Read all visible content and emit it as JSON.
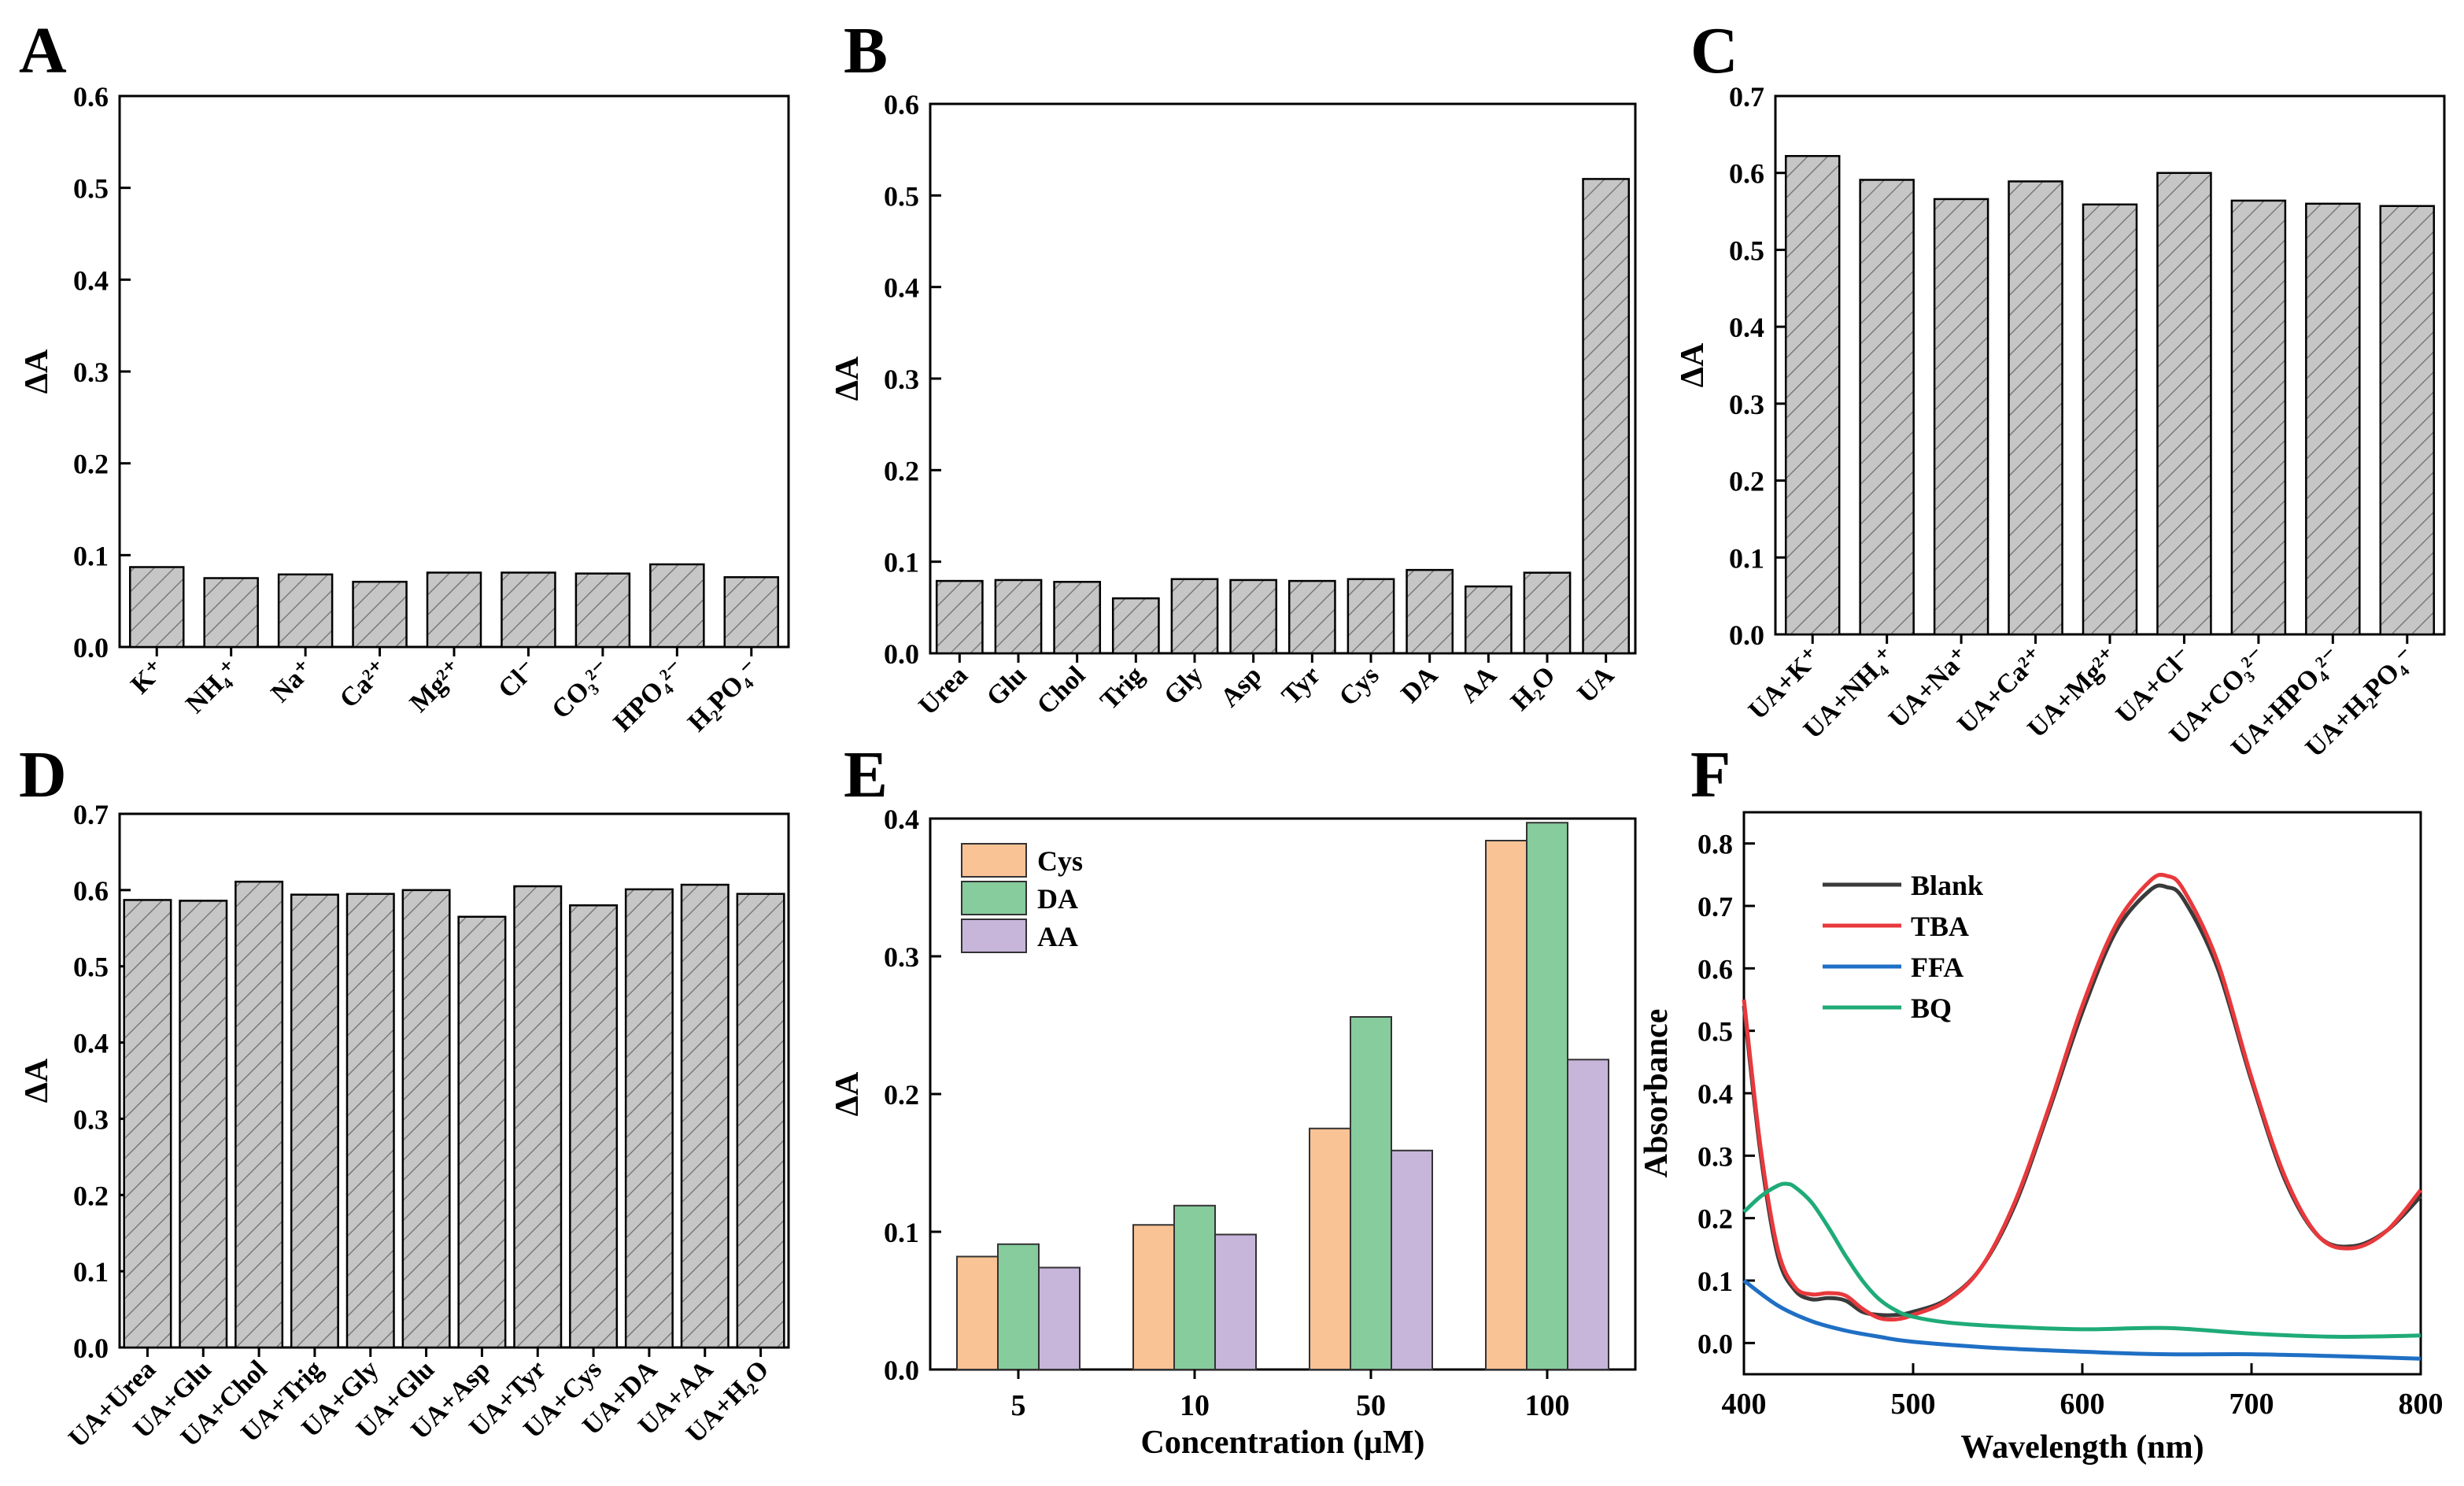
{
  "chart_data": [
    {
      "panel": "A",
      "type": "bar",
      "categories": [
        "K⁺",
        "NH₄⁺",
        "Na⁺",
        "Ca²⁺",
        "Mg²⁺",
        "Cl⁻",
        "CO₃²⁻",
        "HPO₄²⁻",
        "H₂PO₄⁻"
      ],
      "values": [
        0.087,
        0.075,
        0.079,
        0.071,
        0.081,
        0.081,
        0.08,
        0.09,
        0.076
      ],
      "ylabel": "ΔA",
      "ylim": [
        0,
        0.6
      ],
      "yticks": [
        "0.0",
        "0.1",
        "0.2",
        "0.3",
        "0.4",
        "0.5",
        "0.6"
      ],
      "bar_color": "#c6c6c6",
      "hatch": true
    },
    {
      "panel": "B",
      "type": "bar",
      "categories": [
        "Urea",
        "Glu",
        "Chol",
        "Trig",
        "Gly",
        "Asp",
        "Tyr",
        "Cys",
        "DA",
        "AA",
        "H₂O",
        "UA"
      ],
      "values": [
        0.079,
        0.08,
        0.078,
        0.06,
        0.081,
        0.08,
        0.079,
        0.081,
        0.091,
        0.073,
        0.088,
        0.518
      ],
      "ylabel": "ΔA",
      "ylim": [
        0,
        0.6
      ],
      "yticks": [
        "0.0",
        "0.1",
        "0.2",
        "0.3",
        "0.4",
        "0.5",
        "0.6"
      ],
      "bar_color": "#c6c6c6",
      "hatch": true
    },
    {
      "panel": "C",
      "type": "bar",
      "categories": [
        "UA+K⁺",
        "UA+NH₄⁺",
        "UA+Na⁺",
        "UA+Ca²⁺",
        "UA+Mg²⁺",
        "UA+Cl⁻",
        "UA+CO₃²⁻",
        "UA+HPO₄²⁻",
        "UA+H₂PO₄⁻"
      ],
      "values": [
        0.622,
        0.591,
        0.566,
        0.589,
        0.559,
        0.6,
        0.564,
        0.56,
        0.557
      ],
      "ylabel": "ΔA",
      "ylim": [
        0,
        0.7
      ],
      "yticks": [
        "0.0",
        "0.1",
        "0.2",
        "0.3",
        "0.4",
        "0.5",
        "0.6",
        "0.7"
      ],
      "bar_color": "#c6c6c6",
      "hatch": true
    },
    {
      "panel": "D",
      "type": "bar",
      "categories": [
        "UA+Urea",
        "UA+Glu",
        "UA+Chol",
        "UA+Trig",
        "UA+Gly",
        "UA+Glu",
        "UA+Asp",
        "UA+Tyr",
        "UA+Cys",
        "UA+DA",
        "UA+AA",
        "UA+H₂O"
      ],
      "values": [
        0.587,
        0.586,
        0.611,
        0.594,
        0.595,
        0.6,
        0.565,
        0.605,
        0.58,
        0.601,
        0.607,
        0.595
      ],
      "ylabel": "ΔA",
      "ylim": [
        0,
        0.7
      ],
      "yticks": [
        "0.0",
        "0.1",
        "0.2",
        "0.3",
        "0.4",
        "0.5",
        "0.6",
        "0.7"
      ],
      "bar_color": "#c6c6c6",
      "hatch": true
    },
    {
      "panel": "E",
      "type": "bar",
      "categories": [
        "5",
        "10",
        "50",
        "100"
      ],
      "series": [
        {
          "name": "Cys",
          "values": [
            0.082,
            0.105,
            0.175,
            0.384
          ],
          "color": "#f9c396"
        },
        {
          "name": "DA",
          "values": [
            0.091,
            0.119,
            0.256,
            0.397
          ],
          "color": "#86cc9c"
        },
        {
          "name": "AA",
          "values": [
            0.074,
            0.098,
            0.159,
            0.225
          ],
          "color": "#c7b5da"
        }
      ],
      "xlabel": "Concentration (μM)",
      "ylabel": "ΔA",
      "ylim": [
        0,
        0.4
      ],
      "yticks": [
        "0.0",
        "0.1",
        "0.2",
        "0.3",
        "0.4"
      ],
      "legend": "top-left"
    },
    {
      "panel": "F",
      "type": "line",
      "xlabel": "Wavelength (nm)",
      "ylabel": "Absorbance",
      "xlim": [
        400,
        800
      ],
      "ylim": [
        -0.05,
        0.85
      ],
      "xticks": [
        "400",
        "500",
        "600",
        "700",
        "800"
      ],
      "yticks": [
        "0.0",
        "0.1",
        "0.2",
        "0.3",
        "0.4",
        "0.5",
        "0.6",
        "0.7",
        "0.8"
      ],
      "legend": "top-left",
      "series": [
        {
          "name": "Blank",
          "color": "#3a3a3a",
          "x": [
            400,
            410,
            420,
            430,
            440,
            450,
            460,
            470,
            480,
            490,
            500,
            520,
            540,
            560,
            580,
            600,
            620,
            640,
            650,
            660,
            680,
            700,
            720,
            740,
            760,
            780,
            800
          ],
          "y": [
            0.54,
            0.3,
            0.14,
            0.085,
            0.07,
            0.072,
            0.068,
            0.05,
            0.045,
            0.045,
            0.05,
            0.07,
            0.12,
            0.22,
            0.37,
            0.53,
            0.66,
            0.725,
            0.73,
            0.71,
            0.6,
            0.42,
            0.26,
            0.17,
            0.155,
            0.18,
            0.235
          ]
        },
        {
          "name": "TBA",
          "color": "#e8393c",
          "x": [
            400,
            410,
            420,
            430,
            440,
            450,
            460,
            470,
            480,
            490,
            500,
            520,
            540,
            560,
            580,
            600,
            620,
            640,
            650,
            660,
            680,
            700,
            720,
            740,
            760,
            780,
            800
          ],
          "y": [
            0.55,
            0.31,
            0.15,
            0.09,
            0.078,
            0.08,
            0.076,
            0.055,
            0.04,
            0.038,
            0.045,
            0.068,
            0.12,
            0.225,
            0.375,
            0.54,
            0.67,
            0.74,
            0.748,
            0.725,
            0.61,
            0.425,
            0.265,
            0.17,
            0.152,
            0.18,
            0.245
          ]
        },
        {
          "name": "FFA",
          "color": "#1f6fc4",
          "x": [
            400,
            420,
            440,
            460,
            480,
            500,
            550,
            600,
            650,
            700,
            750,
            800
          ],
          "y": [
            0.1,
            0.06,
            0.035,
            0.02,
            0.01,
            0.002,
            -0.008,
            -0.014,
            -0.018,
            -0.018,
            -0.021,
            -0.025
          ]
        },
        {
          "name": "BQ",
          "color": "#1fab78",
          "x": [
            400,
            410,
            420,
            425,
            430,
            440,
            450,
            460,
            470,
            480,
            490,
            500,
            520,
            550,
            600,
            650,
            700,
            750,
            800
          ],
          "y": [
            0.21,
            0.235,
            0.252,
            0.255,
            0.25,
            0.225,
            0.185,
            0.14,
            0.1,
            0.07,
            0.052,
            0.042,
            0.033,
            0.027,
            0.022,
            0.024,
            0.015,
            0.01,
            0.012
          ]
        }
      ]
    }
  ]
}
